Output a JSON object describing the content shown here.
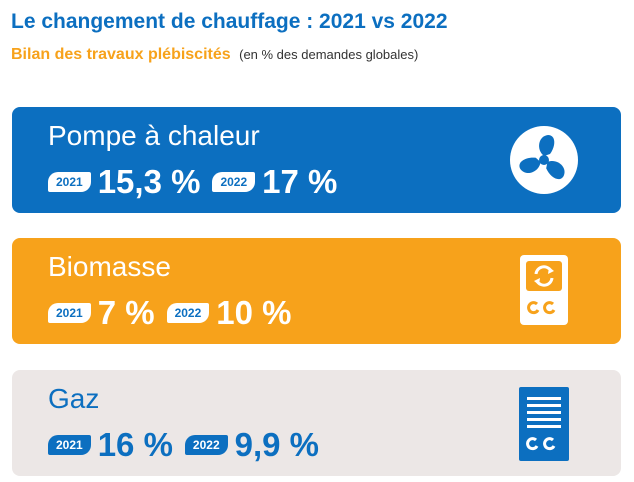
{
  "header": {
    "title": "Le changement de chauffage : 2021 vs 2022",
    "subtitle": "Bilan des travaux plébiscités",
    "subtitle_note": "(en % des demandes globales)"
  },
  "cards": [
    {
      "name": "Pompe à chaleur",
      "icon": "fan-icon",
      "year1_label": "2021",
      "year1_value": "15,3 %",
      "year2_label": "2022",
      "year2_value": "17 %",
      "color": "#0c6fc0"
    },
    {
      "name": "Biomasse",
      "icon": "biomass-boiler-icon",
      "year1_label": "2021",
      "year1_value": "7 %",
      "year2_label": "2022",
      "year2_value": "10 %",
      "color": "#f7a21b"
    },
    {
      "name": "Gaz",
      "icon": "gas-boiler-icon",
      "year1_label": "2021",
      "year1_value": "16 %",
      "year2_label": "2022",
      "year2_value": "9,9 %",
      "color": "#ece7e6"
    }
  ],
  "colors": {
    "primary_blue": "#0c6fc0",
    "accent_orange": "#f7a21b",
    "neutral_beige": "#ece7e6"
  }
}
